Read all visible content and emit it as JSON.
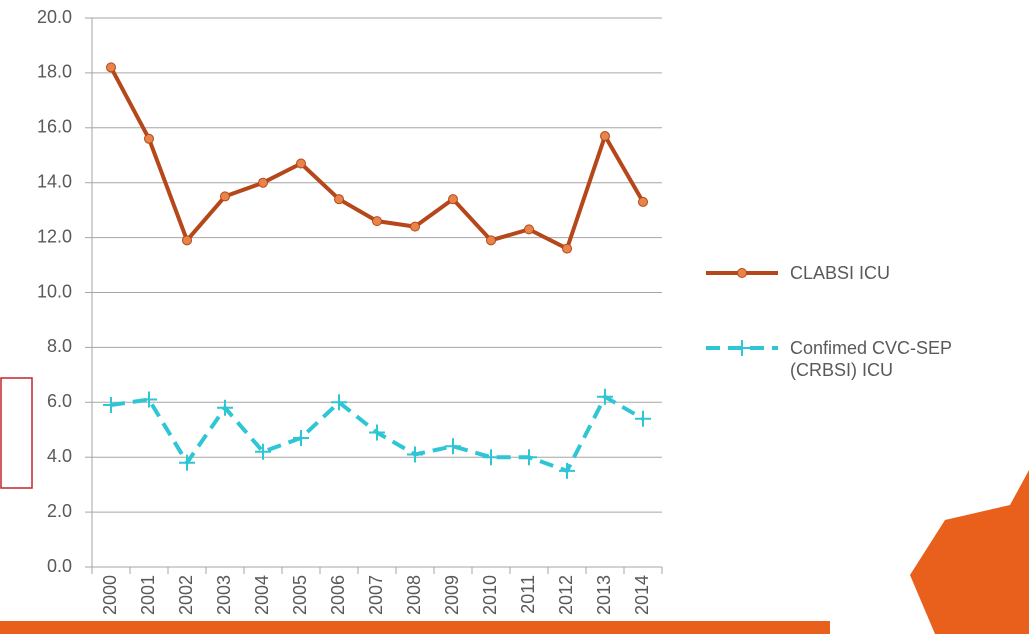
{
  "chart_data": {
    "type": "line",
    "categories": [
      "2000",
      "2001",
      "2002",
      "2003",
      "2004",
      "2005",
      "2006",
      "2007",
      "2008",
      "2009",
      "2010",
      "2011",
      "2012",
      "2013",
      "2014"
    ],
    "series": [
      {
        "name": "CLABSI ICU",
        "color": "#b5471a",
        "marker_color": "#e8844a",
        "marker": "circle",
        "dashed": false,
        "values": [
          18.2,
          15.6,
          11.9,
          13.5,
          14.0,
          14.7,
          13.4,
          12.6,
          12.4,
          13.4,
          11.9,
          12.3,
          11.6,
          15.7,
          13.3
        ]
      },
      {
        "name": "Confimed CVC-SEP (CRBSI) ICU",
        "color": "#2ec6d4",
        "marker_color": "#2ec6d4",
        "marker": "plus",
        "dashed": true,
        "values": [
          5.9,
          6.1,
          3.8,
          5.8,
          4.2,
          4.7,
          6.0,
          4.9,
          4.1,
          4.4,
          4.0,
          4.0,
          3.5,
          6.2,
          5.4
        ]
      }
    ],
    "ylim": [
      0,
      20
    ],
    "yticks": [
      {
        "value": 0,
        "label": "0.0"
      },
      {
        "value": 2,
        "label": "2.0"
      },
      {
        "value": 4,
        "label": "4.0"
      },
      {
        "value": 6,
        "label": "6.0"
      },
      {
        "value": 8,
        "label": "8.0"
      },
      {
        "value": 10,
        "label": "10.0"
      },
      {
        "value": 12,
        "label": "12.0"
      },
      {
        "value": 14,
        "label": "14.0"
      },
      {
        "value": 16,
        "label": "16.0"
      },
      {
        "value": 18,
        "label": "18.0"
      },
      {
        "value": 20,
        "label": "20.0"
      }
    ],
    "grid": true,
    "legend": "right"
  }
}
